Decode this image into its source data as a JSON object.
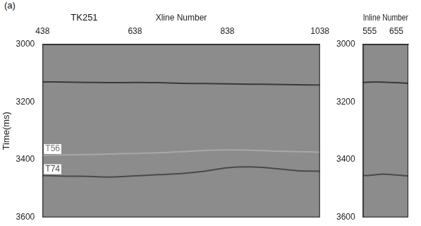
{
  "figure_label": "(a)",
  "chart_data": [
    {
      "type": "line",
      "title": "TK251",
      "x_label": "Xline Number",
      "y_label": "Time(ms)",
      "x": [
        438,
        488,
        538,
        588,
        638,
        688,
        738,
        788,
        838,
        888,
        938,
        988,
        1038
      ],
      "xlim": [
        438,
        1038
      ],
      "xticks": [
        438,
        638,
        838,
        1038
      ],
      "ylim": [
        3000,
        3600
      ],
      "yticks": [
        3000,
        3200,
        3400,
        3600
      ],
      "grid": false,
      "series": [
        {
          "color": "#3a3a3a",
          "values": [
            3130,
            3131,
            3132,
            3133,
            3132,
            3133,
            3135,
            3136,
            3137,
            3138,
            3139,
            3140,
            3141
          ]
        },
        {
          "name": "T56",
          "color": "#a8a8a8",
          "values": [
            3385,
            3383,
            3382,
            3380,
            3378,
            3376,
            3372,
            3368,
            3366,
            3367,
            3370,
            3372,
            3374
          ]
        },
        {
          "name": "T74",
          "color": "#4a4a4a",
          "values": [
            3455,
            3457,
            3458,
            3460,
            3456,
            3452,
            3448,
            3440,
            3428,
            3425,
            3430,
            3438,
            3440
          ]
        }
      ]
    },
    {
      "type": "line",
      "x_label": "Inline Number",
      "x": [
        530,
        555,
        580,
        605,
        630,
        655,
        680,
        700
      ],
      "xlim": [
        530,
        700
      ],
      "xticks": [
        555,
        655
      ],
      "ylim": [
        3000,
        3600
      ],
      "yticks": [
        3000,
        3200,
        3400,
        3600
      ],
      "grid": false,
      "series": [
        {
          "color": "#3a3a3a",
          "values": [
            3132,
            3131,
            3130,
            3131,
            3132,
            3133,
            3134,
            3135
          ]
        },
        {
          "color": "#4a4a4a",
          "values": [
            3455,
            3454,
            3452,
            3450,
            3451,
            3453,
            3455,
            3456
          ]
        }
      ]
    }
  ]
}
